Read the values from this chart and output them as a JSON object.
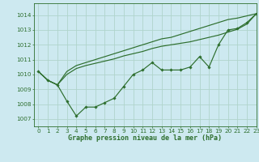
{
  "title": "Graphe pression niveau de la mer (hPa)",
  "bg_color": "#cde9f0",
  "grid_color": "#b0d4cc",
  "line_color": "#2d6e2d",
  "spine_color": "#2d6e2d",
  "xlim": [
    -0.5,
    23
  ],
  "ylim": [
    1006.5,
    1014.8
  ],
  "yticks": [
    1007,
    1008,
    1009,
    1010,
    1011,
    1012,
    1013,
    1014
  ],
  "xticks": [
    0,
    1,
    2,
    3,
    4,
    5,
    6,
    7,
    8,
    9,
    10,
    11,
    12,
    13,
    14,
    15,
    16,
    17,
    18,
    19,
    20,
    21,
    22,
    23
  ],
  "xlabel_fontsize": 6.0,
  "tick_fontsize": 5.2,
  "series0": [
    1010.2,
    1009.6,
    1009.3,
    1008.2,
    1007.2,
    1007.8,
    1007.8,
    1008.1,
    1008.4,
    1009.2,
    1010.0,
    1010.3,
    1010.8,
    1010.3,
    1010.3,
    1010.3,
    1010.5,
    1011.2,
    1010.5,
    1012.0,
    1013.0,
    1013.1,
    1013.5,
    1014.1
  ],
  "series1": [
    1010.2,
    1009.6,
    1009.3,
    1010.2,
    1010.6,
    1010.8,
    1011.0,
    1011.2,
    1011.4,
    1011.6,
    1011.8,
    1012.0,
    1012.2,
    1012.4,
    1012.5,
    1012.7,
    1012.9,
    1013.1,
    1013.3,
    1013.5,
    1013.7,
    1013.8,
    1013.95,
    1014.1
  ],
  "series2": [
    1010.2,
    1009.6,
    1009.3,
    1010.0,
    1010.4,
    1010.6,
    1010.75,
    1010.9,
    1011.05,
    1011.25,
    1011.4,
    1011.55,
    1011.75,
    1011.9,
    1012.0,
    1012.1,
    1012.2,
    1012.35,
    1012.5,
    1012.65,
    1012.85,
    1013.05,
    1013.4,
    1014.1
  ]
}
